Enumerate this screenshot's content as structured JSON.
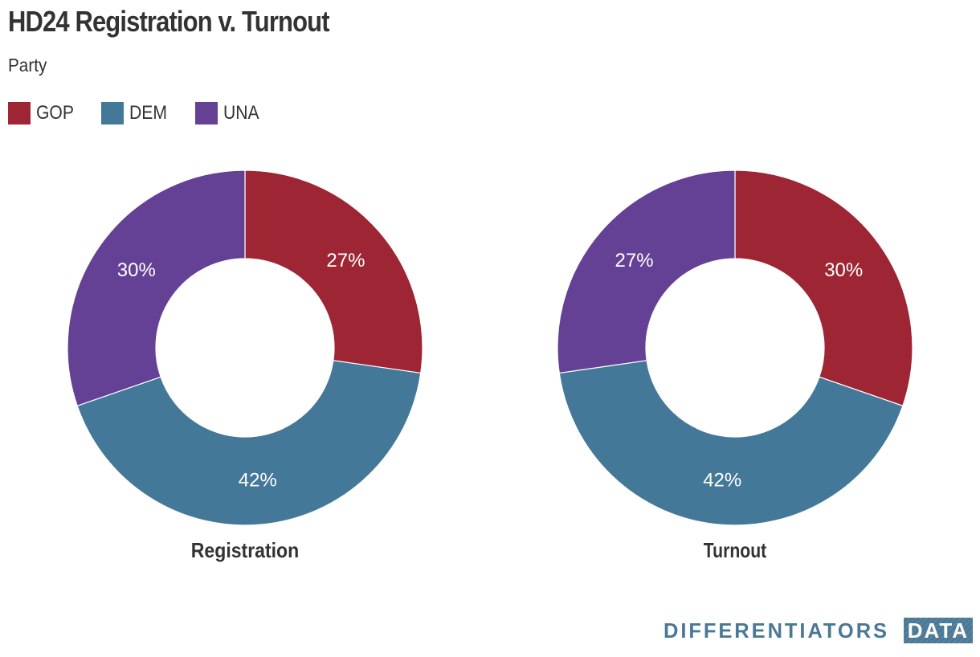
{
  "header": {
    "title": "HD24 Registration v. Turnout",
    "subtitle": "Party"
  },
  "legend": {
    "items": [
      {
        "label": "GOP",
        "color": "#9e2533"
      },
      {
        "label": "DEM",
        "color": "#447898"
      },
      {
        "label": "UNA",
        "color": "#644195"
      }
    ]
  },
  "chart_data": [
    {
      "type": "pie",
      "variant": "donut",
      "name": "registration",
      "title": "Registration",
      "categories": [
        "GOP",
        "DEM",
        "UNA"
      ],
      "values": [
        27,
        42,
        30
      ],
      "labels": [
        "27%",
        "42%",
        "30%"
      ],
      "colors": [
        "#9e2533",
        "#447898",
        "#644195"
      ]
    },
    {
      "type": "pie",
      "variant": "donut",
      "name": "turnout",
      "title": "Turnout",
      "categories": [
        "GOP",
        "DEM",
        "UNA"
      ],
      "values": [
        30,
        42,
        27
      ],
      "labels": [
        "30%",
        "42%",
        "27%"
      ],
      "colors": [
        "#9e2533",
        "#447898",
        "#644195"
      ]
    }
  ],
  "branding": {
    "logo_text": "DIFFERENTIATORS",
    "logo_box_text": "DATA"
  }
}
